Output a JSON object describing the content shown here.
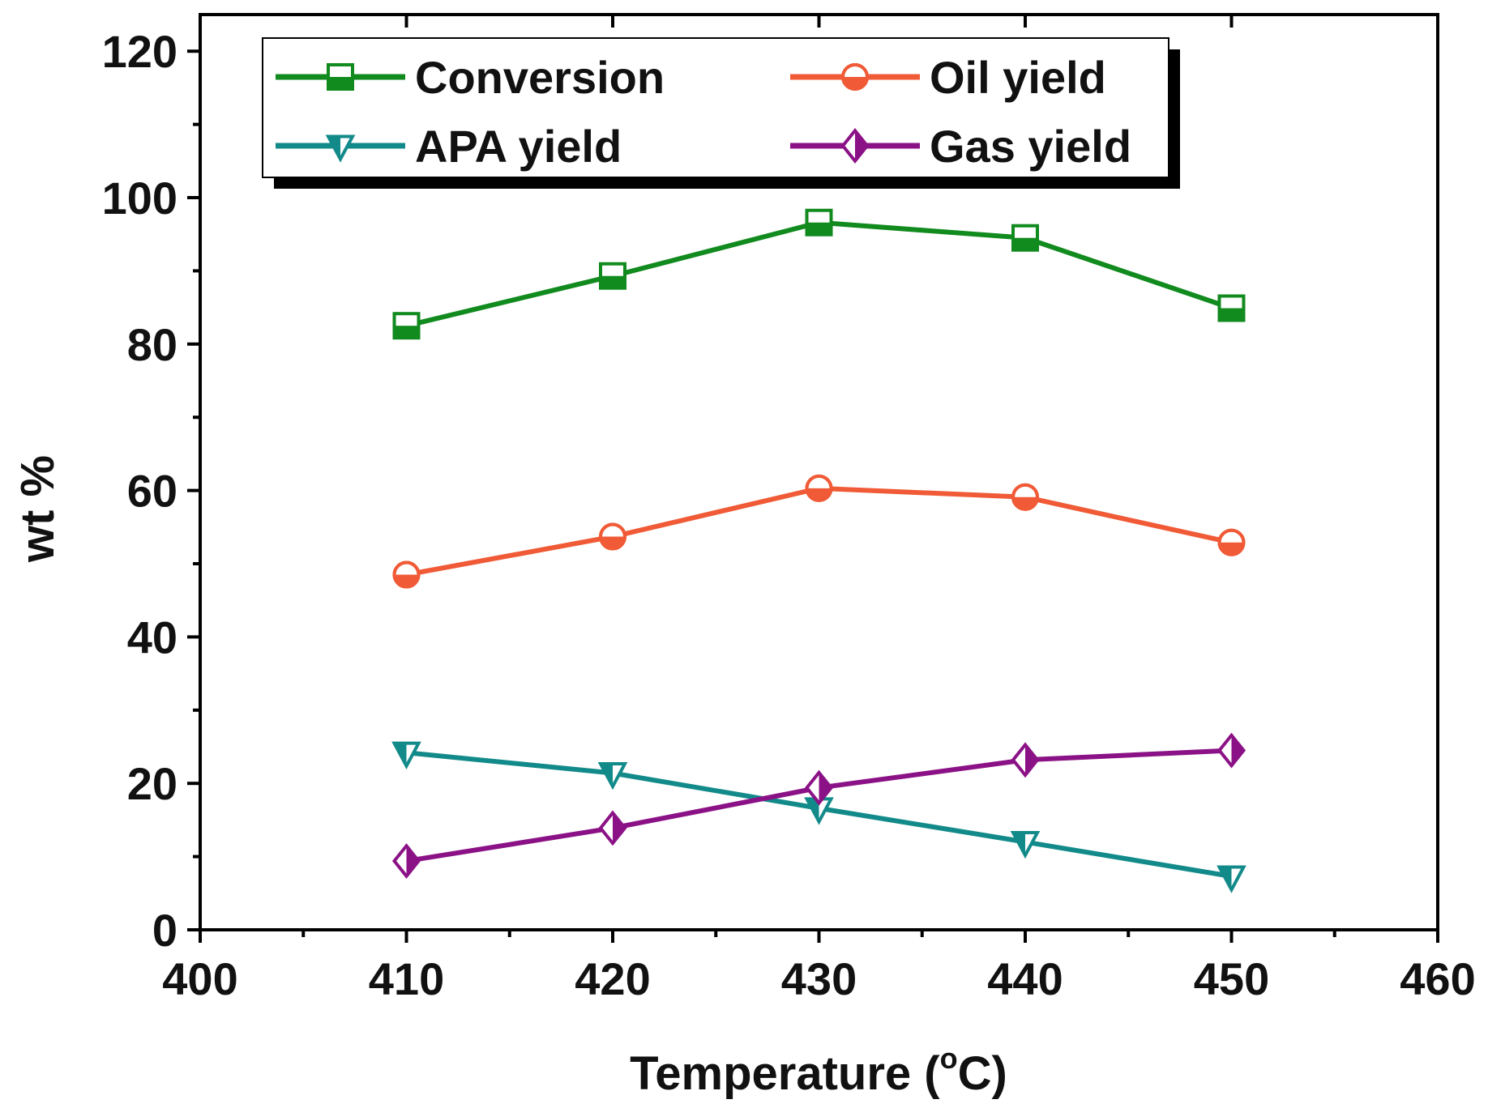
{
  "chart_data": {
    "type": "line",
    "xlabel": "Temperature (°C)",
    "xlabel_main": "Temperature (",
    "xlabel_degree": "o",
    "xlabel_unit": "C)",
    "ylabel": "wt %",
    "xlim": [
      400,
      460
    ],
    "ylim": [
      0,
      125
    ],
    "xticks": [
      400,
      410,
      420,
      430,
      440,
      450,
      460
    ],
    "yticks": [
      0,
      20,
      40,
      60,
      80,
      100,
      120
    ],
    "x": [
      410,
      420,
      430,
      440,
      450
    ],
    "legend_position": "top-left",
    "series": [
      {
        "name": "Conversion",
        "color": "#118a1e",
        "marker": "square-half",
        "values": [
          82.5,
          89.3,
          96.6,
          94.5,
          84.9
        ]
      },
      {
        "name": "Oil yield",
        "color": "#f05a36",
        "marker": "circle-half",
        "values": [
          48.5,
          53.7,
          60.3,
          59.1,
          52.9
        ]
      },
      {
        "name": "APA yield",
        "color": "#138a8a",
        "marker": "triangle-down-half",
        "values": [
          24.2,
          21.4,
          16.6,
          12.0,
          7.3
        ]
      },
      {
        "name": "Gas yield",
        "color": "#8b1286",
        "marker": "diamond-half",
        "values": [
          9.4,
          13.9,
          19.4,
          23.2,
          24.5
        ]
      }
    ]
  }
}
